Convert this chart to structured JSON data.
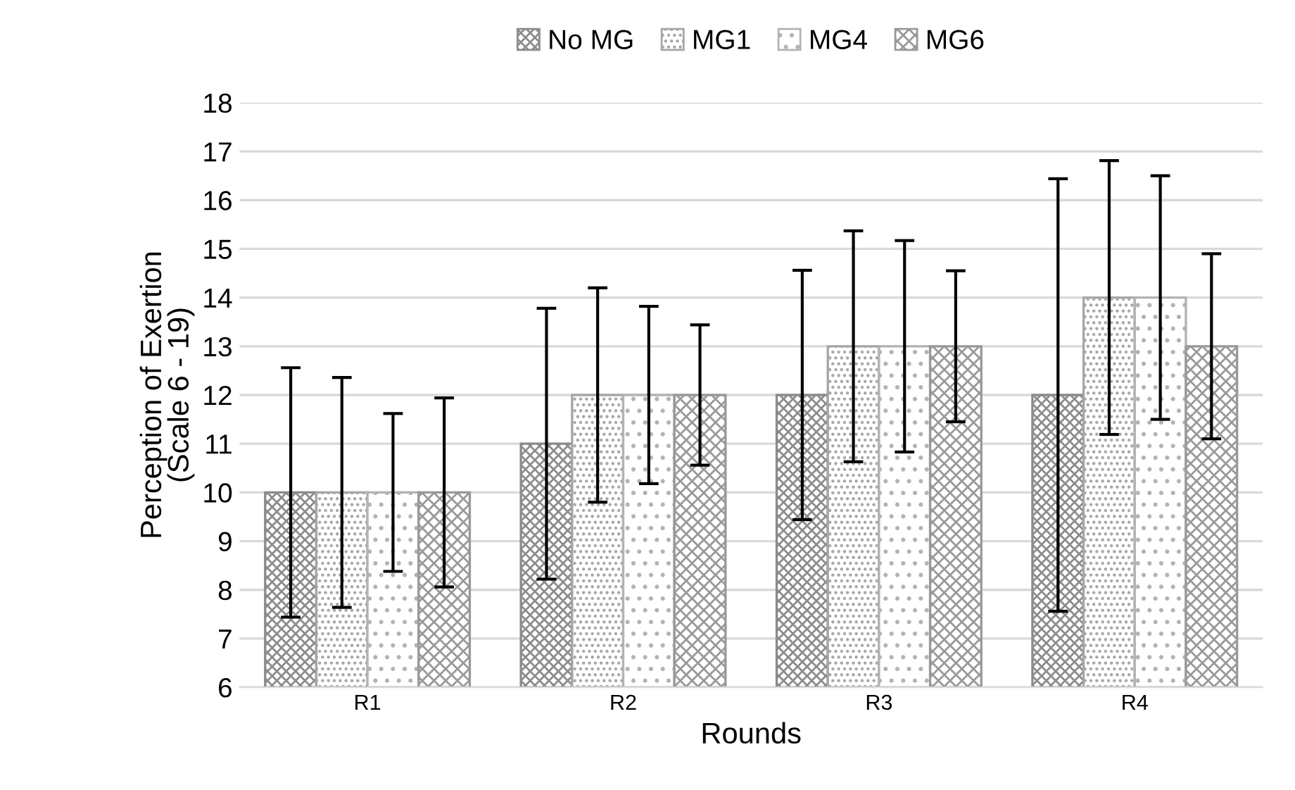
{
  "chart_data": {
    "type": "bar",
    "xlabel": "Rounds",
    "ylabel": "Perception of Exertion\n(Scale 6 - 19)",
    "categories": [
      "R1",
      "R2",
      "R3",
      "R4"
    ],
    "series": [
      {
        "name": "No MG",
        "color": "#8c8c8c",
        "values": [
          10,
          11,
          12,
          12
        ],
        "errors": [
          2.56,
          2.78,
          2.56,
          4.44
        ]
      },
      {
        "name": "MG1",
        "color": "#a6a6a6",
        "values": [
          10,
          12,
          13,
          14
        ],
        "errors": [
          2.36,
          2.2,
          2.37,
          2.81
        ]
      },
      {
        "name": "MG4",
        "color": "#b3b3b3",
        "values": [
          10,
          12,
          13,
          14
        ],
        "errors": [
          1.62,
          1.82,
          2.17,
          2.5
        ]
      },
      {
        "name": "MG6",
        "color": "#999999",
        "values": [
          10,
          12,
          13,
          13
        ],
        "errors": [
          1.94,
          1.44,
          1.55,
          1.9
        ]
      }
    ],
    "ylim": [
      6,
      18
    ],
    "yticks": [
      6,
      7,
      8,
      9,
      10,
      11,
      12,
      13,
      14,
      15,
      16,
      17,
      18
    ],
    "grid": "y",
    "legend": "top"
  }
}
